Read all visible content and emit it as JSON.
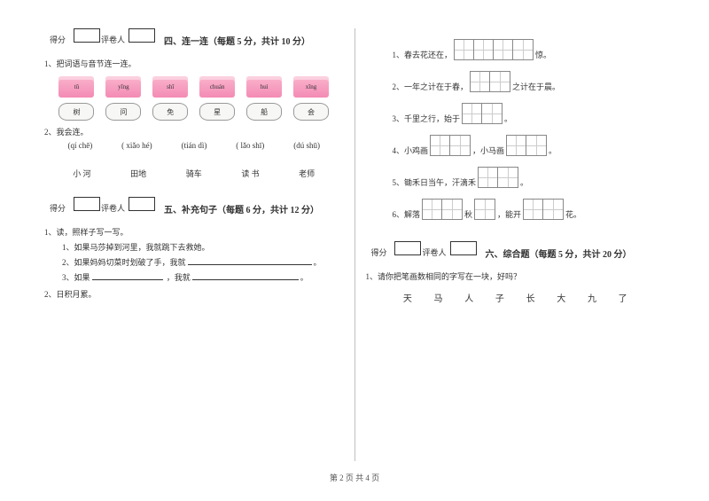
{
  "left": {
    "score_labels": [
      "得分",
      "评卷人"
    ],
    "section4": {
      "title": "四、连一连（每题 5 分，共计 10 分）",
      "q1": "1、把词语与音节连一连。",
      "pinyin": [
        "tǔ",
        "yīng",
        "shī",
        "chuán",
        "huì",
        "xīng"
      ],
      "words": [
        "树",
        "问",
        "免",
        "星",
        "船",
        "会"
      ],
      "q2": "2、我会连。",
      "row_a": [
        "(qí chē)",
        "( xiǎo hé)",
        "(tián dì)",
        "( lǎo shī)",
        "(dú shū)"
      ],
      "row_b": [
        "小 河",
        "田地",
        "骑车",
        "读 书",
        "老师"
      ]
    },
    "section5": {
      "title": "五、补充句子（每题 6 分，共计 12 分）",
      "q1": "1、读，照样子写一写。",
      "s1": "1、如果马莎掉到河里，我就跳下去救她。",
      "s2_a": "2、如果妈妈切菜时划破了手，我就",
      "s3_a": "3、如果",
      "s3_b": "，我就",
      "q2": "2、日积月累。"
    }
  },
  "right": {
    "fills": [
      {
        "pre": "1、春去花还在，",
        "cells": 4,
        "post": "惊。"
      },
      {
        "pre": "2、一年之计在于春，",
        "cells": 2,
        "post": "之计在于晨。"
      },
      {
        "pre": "3、千里之行，始于",
        "cells": 2,
        "post": "。"
      },
      {
        "pre": "4、小鸡画",
        "cells": 2,
        "mid": "，小马画",
        "cells2": 2,
        "post": "。"
      },
      {
        "pre": "5、锄禾日当午，汗滴禾",
        "cells": 2,
        "post": "。"
      },
      {
        "pre": "6、解落",
        "cells": 2,
        "mid": "秋",
        "cells2": 1,
        "mid2": "，能开",
        "cells3": 2,
        "post": "花。"
      }
    ],
    "score_labels": [
      "得分",
      "评卷人"
    ],
    "section6": {
      "title": "六、综合题（每题 5 分，共计 20 分）",
      "q1": "1、请你把笔画数相同的字写在一块，好吗？",
      "chars": [
        "天",
        "马",
        "人",
        "子",
        "长",
        "大",
        "九",
        "了"
      ]
    }
  },
  "footer": "第 2 页 共 4 页"
}
